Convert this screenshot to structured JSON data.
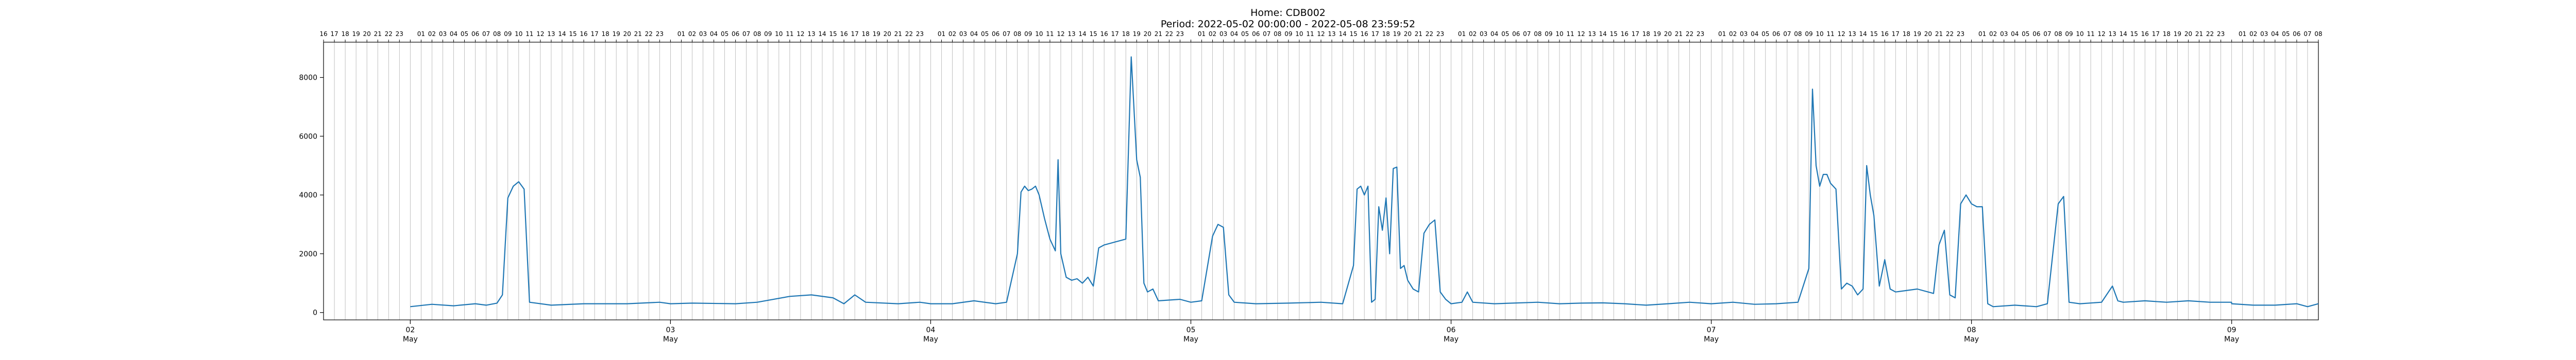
{
  "chart_data": {
    "type": "line",
    "title": "Home: CDB002",
    "subtitle": "Period: 2022-05-02 00:00:00 - 2022-05-08 23:59:52",
    "xlabel": "",
    "ylabel": "",
    "line_color": "#1f77b4",
    "grid": "vertical hourly gridlines",
    "ylim": [
      -250,
      9200
    ],
    "yticks": [
      0,
      2000,
      4000,
      6000,
      8000
    ],
    "xlim": [
      "2022-05-01T16:00",
      "2022-05-09T08:00"
    ],
    "x_major_ticks": [
      {
        "day": "02",
        "month": "May",
        "date": "2022-05-02"
      },
      {
        "day": "03",
        "month": "May",
        "date": "2022-05-03"
      },
      {
        "day": "04",
        "month": "May",
        "date": "2022-05-04"
      },
      {
        "day": "05",
        "month": "May",
        "date": "2022-05-05"
      },
      {
        "day": "06",
        "month": "May",
        "date": "2022-05-06"
      },
      {
        "day": "07",
        "month": "May",
        "date": "2022-05-07"
      },
      {
        "day": "08",
        "month": "May",
        "date": "2022-05-08"
      },
      {
        "day": "09",
        "month": "May",
        "date": "2022-05-09"
      }
    ],
    "x_top_hour_labels": [
      "01",
      "02",
      "03",
      "04",
      "05",
      "06",
      "07",
      "08",
      "09",
      "10",
      "11",
      "12",
      "13",
      "14",
      "15",
      "16",
      "17",
      "18",
      "19",
      "20",
      "21",
      "22",
      "23"
    ],
    "x_top_first_labels": [
      "16",
      "17",
      "18",
      "19",
      "20",
      "21",
      "22",
      "23"
    ],
    "x_top_last_labels": [
      "01",
      "02",
      "03",
      "04",
      "05",
      "06",
      "07",
      "08"
    ],
    "series": [
      {
        "points": [
          [
            "2022-05-02T00:00",
            200
          ],
          [
            "2022-05-02T02:00",
            280
          ],
          [
            "2022-05-02T04:00",
            230
          ],
          [
            "2022-05-02T06:00",
            300
          ],
          [
            "2022-05-02T07:00",
            250
          ],
          [
            "2022-05-02T08:00",
            320
          ],
          [
            "2022-05-02T08:30",
            600
          ],
          [
            "2022-05-02T09:00",
            3900
          ],
          [
            "2022-05-02T09:30",
            4300
          ],
          [
            "2022-05-02T10:00",
            4450
          ],
          [
            "2022-05-02T10:30",
            4200
          ],
          [
            "2022-05-02T11:00",
            350
          ],
          [
            "2022-05-02T13:00",
            250
          ],
          [
            "2022-05-02T16:00",
            300
          ],
          [
            "2022-05-02T20:00",
            300
          ],
          [
            "2022-05-02T23:00",
            350
          ],
          [
            "2022-05-03T00:00",
            300
          ],
          [
            "2022-05-03T02:00",
            320
          ],
          [
            "2022-05-03T06:00",
            300
          ],
          [
            "2022-05-03T08:00",
            350
          ],
          [
            "2022-05-03T11:00",
            550
          ],
          [
            "2022-05-03T13:00",
            600
          ],
          [
            "2022-05-03T15:00",
            500
          ],
          [
            "2022-05-03T16:00",
            300
          ],
          [
            "2022-05-03T17:00",
            600
          ],
          [
            "2022-05-03T18:00",
            350
          ],
          [
            "2022-05-03T21:00",
            300
          ],
          [
            "2022-05-03T23:00",
            350
          ],
          [
            "2022-05-04T00:00",
            300
          ],
          [
            "2022-05-04T02:00",
            300
          ],
          [
            "2022-05-04T04:00",
            400
          ],
          [
            "2022-05-04T06:00",
            300
          ],
          [
            "2022-05-04T07:00",
            350
          ],
          [
            "2022-05-04T08:00",
            2000
          ],
          [
            "2022-05-04T08:20",
            4100
          ],
          [
            "2022-05-04T08:40",
            4300
          ],
          [
            "2022-05-04T09:00",
            4150
          ],
          [
            "2022-05-04T09:20",
            4200
          ],
          [
            "2022-05-04T09:40",
            4300
          ],
          [
            "2022-05-04T10:00",
            4000
          ],
          [
            "2022-05-04T10:30",
            3200
          ],
          [
            "2022-05-04T11:00",
            2500
          ],
          [
            "2022-05-04T11:30",
            2100
          ],
          [
            "2022-05-04T11:45",
            5200
          ],
          [
            "2022-05-04T12:00",
            2000
          ],
          [
            "2022-05-04T12:30",
            1200
          ],
          [
            "2022-05-04T13:00",
            1100
          ],
          [
            "2022-05-04T13:30",
            1150
          ],
          [
            "2022-05-04T14:00",
            1000
          ],
          [
            "2022-05-04T14:30",
            1200
          ],
          [
            "2022-05-04T15:00",
            900
          ],
          [
            "2022-05-04T15:30",
            2200
          ],
          [
            "2022-05-04T16:00",
            2300
          ],
          [
            "2022-05-04T17:00",
            2400
          ],
          [
            "2022-05-04T18:00",
            2500
          ],
          [
            "2022-05-04T18:30",
            8700
          ],
          [
            "2022-05-04T19:00",
            5200
          ],
          [
            "2022-05-04T19:20",
            4600
          ],
          [
            "2022-05-04T19:40",
            1000
          ],
          [
            "2022-05-04T20:00",
            700
          ],
          [
            "2022-05-04T20:30",
            800
          ],
          [
            "2022-05-04T21:00",
            400
          ],
          [
            "2022-05-04T23:00",
            450
          ],
          [
            "2022-05-05T00:00",
            350
          ],
          [
            "2022-05-05T01:00",
            400
          ],
          [
            "2022-05-05T02:00",
            2600
          ],
          [
            "2022-05-05T02:30",
            3000
          ],
          [
            "2022-05-05T03:00",
            2900
          ],
          [
            "2022-05-05T03:30",
            600
          ],
          [
            "2022-05-05T04:00",
            350
          ],
          [
            "2022-05-05T06:00",
            300
          ],
          [
            "2022-05-05T09:00",
            320
          ],
          [
            "2022-05-05T12:00",
            350
          ],
          [
            "2022-05-05T14:00",
            300
          ],
          [
            "2022-05-05T15:00",
            1600
          ],
          [
            "2022-05-05T15:20",
            4200
          ],
          [
            "2022-05-05T15:40",
            4300
          ],
          [
            "2022-05-05T16:00",
            4000
          ],
          [
            "2022-05-05T16:20",
            4300
          ],
          [
            "2022-05-05T16:40",
            350
          ],
          [
            "2022-05-05T17:00",
            450
          ],
          [
            "2022-05-05T17:20",
            3600
          ],
          [
            "2022-05-05T17:40",
            2800
          ],
          [
            "2022-05-05T18:00",
            3900
          ],
          [
            "2022-05-05T18:20",
            2000
          ],
          [
            "2022-05-05T18:40",
            4900
          ],
          [
            "2022-05-05T19:00",
            4950
          ],
          [
            "2022-05-05T19:20",
            1500
          ],
          [
            "2022-05-05T19:40",
            1600
          ],
          [
            "2022-05-05T20:00",
            1100
          ],
          [
            "2022-05-05T20:30",
            800
          ],
          [
            "2022-05-05T21:00",
            700
          ],
          [
            "2022-05-05T21:30",
            2700
          ],
          [
            "2022-05-05T22:00",
            3000
          ],
          [
            "2022-05-05T22:30",
            3150
          ],
          [
            "2022-05-05T23:00",
            700
          ],
          [
            "2022-05-05T23:30",
            450
          ],
          [
            "2022-05-06T00:00",
            300
          ],
          [
            "2022-05-06T01:00",
            350
          ],
          [
            "2022-05-06T01:30",
            700
          ],
          [
            "2022-05-06T02:00",
            350
          ],
          [
            "2022-05-06T04:00",
            300
          ],
          [
            "2022-05-06T08:00",
            350
          ],
          [
            "2022-05-06T10:00",
            300
          ],
          [
            "2022-05-06T12:00",
            320
          ],
          [
            "2022-05-06T14:00",
            330
          ],
          [
            "2022-05-06T16:00",
            300
          ],
          [
            "2022-05-06T18:00",
            250
          ],
          [
            "2022-05-06T20:00",
            300
          ],
          [
            "2022-05-06T22:00",
            350
          ],
          [
            "2022-05-07T00:00",
            300
          ],
          [
            "2022-05-07T02:00",
            350
          ],
          [
            "2022-05-07T04:00",
            280
          ],
          [
            "2022-05-07T06:00",
            300
          ],
          [
            "2022-05-07T08:00",
            350
          ],
          [
            "2022-05-07T09:00",
            1500
          ],
          [
            "2022-05-07T09:20",
            7600
          ],
          [
            "2022-05-07T09:40",
            5000
          ],
          [
            "2022-05-07T10:00",
            4300
          ],
          [
            "2022-05-07T10:20",
            4700
          ],
          [
            "2022-05-07T10:40",
            4700
          ],
          [
            "2022-05-07T11:00",
            4400
          ],
          [
            "2022-05-07T11:30",
            4200
          ],
          [
            "2022-05-07T12:00",
            800
          ],
          [
            "2022-05-07T12:30",
            1000
          ],
          [
            "2022-05-07T13:00",
            900
          ],
          [
            "2022-05-07T13:30",
            600
          ],
          [
            "2022-05-07T14:00",
            800
          ],
          [
            "2022-05-07T14:20",
            5000
          ],
          [
            "2022-05-07T14:40",
            4000
          ],
          [
            "2022-05-07T15:00",
            3300
          ],
          [
            "2022-05-07T15:30",
            900
          ],
          [
            "2022-05-07T16:00",
            1800
          ],
          [
            "2022-05-07T16:30",
            800
          ],
          [
            "2022-05-07T17:00",
            700
          ],
          [
            "2022-05-07T18:00",
            750
          ],
          [
            "2022-05-07T19:00",
            800
          ],
          [
            "2022-05-07T20:00",
            700
          ],
          [
            "2022-05-07T20:30",
            650
          ],
          [
            "2022-05-07T21:00",
            2300
          ],
          [
            "2022-05-07T21:30",
            2800
          ],
          [
            "2022-05-07T22:00",
            600
          ],
          [
            "2022-05-07T22:30",
            500
          ],
          [
            "2022-05-07T23:00",
            3700
          ],
          [
            "2022-05-07T23:30",
            4000
          ],
          [
            "2022-05-08T00:00",
            3700
          ],
          [
            "2022-05-08T00:30",
            3600
          ],
          [
            "2022-05-08T01:00",
            3600
          ],
          [
            "2022-05-08T01:30",
            300
          ],
          [
            "2022-05-08T02:00",
            200
          ],
          [
            "2022-05-08T04:00",
            250
          ],
          [
            "2022-05-08T06:00",
            200
          ],
          [
            "2022-05-08T07:00",
            300
          ],
          [
            "2022-05-08T08:00",
            3700
          ],
          [
            "2022-05-08T08:30",
            3950
          ],
          [
            "2022-05-08T09:00",
            350
          ],
          [
            "2022-05-08T10:00",
            300
          ],
          [
            "2022-05-08T12:00",
            350
          ],
          [
            "2022-05-08T13:00",
            900
          ],
          [
            "2022-05-08T13:30",
            400
          ],
          [
            "2022-05-08T14:00",
            350
          ],
          [
            "2022-05-08T16:00",
            400
          ],
          [
            "2022-05-08T18:00",
            350
          ],
          [
            "2022-05-08T20:00",
            400
          ],
          [
            "2022-05-08T22:00",
            350
          ],
          [
            "2022-05-08T23:59",
            350
          ],
          [
            "2022-05-09T00:00",
            300
          ],
          [
            "2022-05-09T02:00",
            250
          ],
          [
            "2022-05-09T04:00",
            250
          ],
          [
            "2022-05-09T06:00",
            300
          ],
          [
            "2022-05-09T07:00",
            200
          ],
          [
            "2022-05-09T08:00",
            300
          ]
        ]
      }
    ]
  }
}
